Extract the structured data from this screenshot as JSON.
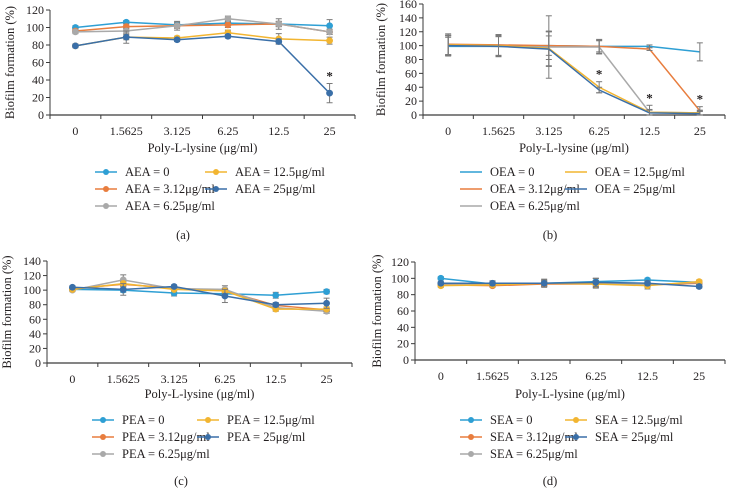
{
  "figure": {
    "panels": [
      "(a)",
      "(b)",
      "(c)",
      "(d)"
    ]
  },
  "chart_data": [
    {
      "type": "line",
      "panel": "(a)",
      "title": "",
      "xlabel": "Poly-L-lysine (μg/ml)",
      "ylabel": "Biofilm formation (%)",
      "categories": [
        "0",
        "1.5625",
        "3.125",
        "6.25",
        "12.5",
        "25"
      ],
      "ylim": [
        0,
        120
      ],
      "yticks": [
        0,
        20,
        40,
        60,
        80,
        100,
        120
      ],
      "grid": false,
      "markers": true,
      "legend_position": "bottom",
      "series": [
        {
          "name": "AEA = 0",
          "color": "#2e9fd4",
          "values": [
            100,
            106,
            103,
            105,
            104,
            102
          ],
          "errors": [
            2,
            2,
            3,
            3,
            3,
            7
          ]
        },
        {
          "name": "AEA = 3.12μg/ml",
          "color": "#e87d3e",
          "values": [
            96,
            101,
            102,
            103,
            104,
            95
          ],
          "errors": [
            2,
            3,
            3,
            3,
            3,
            3
          ]
        },
        {
          "name": "AEA = 6.25μg/ml",
          "color": "#a9a9a9",
          "values": [
            95,
            96,
            102,
            110,
            104,
            95
          ],
          "errors": [
            2,
            3,
            5,
            3,
            6,
            3
          ]
        },
        {
          "name": "AEA = 12.5μg/ml",
          "color": "#f2b531",
          "values": [
            79,
            89,
            88,
            94,
            87,
            85
          ],
          "errors": [
            2,
            3,
            2,
            3,
            6,
            4
          ]
        },
        {
          "name": "AEA = 25μg/ml",
          "color": "#3a6fa8",
          "values": [
            79,
            89,
            86,
            90,
            84,
            25
          ],
          "errors": [
            2,
            7,
            2,
            2,
            3,
            11
          ]
        }
      ],
      "annotations": [
        {
          "category": "25",
          "text": "*"
        }
      ]
    },
    {
      "type": "line",
      "panel": "(b)",
      "title": "",
      "xlabel": "Poly-L-lysine (μg/ml)",
      "ylabel": "Biofilm formation (%)",
      "categories": [
        "0",
        "1.5625",
        "3.125",
        "6.25",
        "12.5",
        "25"
      ],
      "ylim": [
        0,
        160
      ],
      "yticks": [
        0,
        20,
        40,
        60,
        80,
        100,
        120,
        140,
        160
      ],
      "grid": false,
      "markers": false,
      "legend_position": "bottom",
      "series": [
        {
          "name": "OEA = 0",
          "color": "#2e9fd4",
          "values": [
            99,
            99,
            100,
            99,
            99,
            91
          ],
          "errors": [
            13,
            15,
            14,
            10,
            2,
            13
          ]
        },
        {
          "name": "OEA = 3.12μg/ml",
          "color": "#e87d3e",
          "values": [
            102,
            101,
            100,
            99,
            95,
            6
          ],
          "errors": [
            15,
            15,
            20,
            8,
            2,
            6
          ]
        },
        {
          "name": "OEA = 6.25μg/ml",
          "color": "#a9a9a9",
          "values": [
            100,
            99,
            98,
            98,
            4,
            3
          ],
          "errors": [
            15,
            14,
            45,
            10,
            10,
            4
          ]
        },
        {
          "name": "OEA = 12.5μg/ml",
          "color": "#f2b531",
          "values": [
            101,
            100,
            96,
            40,
            4,
            3
          ],
          "errors": [
            14,
            15,
            25,
            8,
            4,
            3
          ]
        },
        {
          "name": "OEA = 25μg/ml",
          "color": "#3a6fa8",
          "values": [
            100,
            99,
            95,
            36,
            3,
            2
          ],
          "errors": [
            14,
            14,
            25,
            4,
            4,
            3
          ]
        }
      ],
      "annotations": [
        {
          "category": "6.25",
          "text": "*"
        },
        {
          "category": "12.5",
          "text": "*"
        },
        {
          "category": "25",
          "text": "*"
        }
      ]
    },
    {
      "type": "line",
      "panel": "(c)",
      "title": "",
      "xlabel": "Poly-L-lysine (μg/ml)",
      "ylabel": "Biofilm formation (%)",
      "categories": [
        "0",
        "1.5625",
        "3.125",
        "6.25",
        "12.5",
        "25"
      ],
      "ylim": [
        0,
        140
      ],
      "yticks": [
        0,
        20,
        40,
        60,
        80,
        100,
        120,
        140
      ],
      "grid": false,
      "markers": true,
      "legend_position": "bottom",
      "series": [
        {
          "name": "PEA = 0",
          "color": "#2e9fd4",
          "values": [
            101,
            100,
            96,
            95,
            93,
            98
          ],
          "errors": [
            2,
            3,
            4,
            3,
            4,
            3
          ]
        },
        {
          "name": "PEA = 3.12μg/ml",
          "color": "#e87d3e",
          "values": [
            102,
            108,
            103,
            99,
            79,
            73
          ],
          "errors": [
            2,
            3,
            2,
            3,
            3,
            3
          ]
        },
        {
          "name": "PEA = 6.25μg/ml",
          "color": "#a9a9a9",
          "values": [
            100,
            114,
            102,
            101,
            76,
            71
          ],
          "errors": [
            2,
            7,
            2,
            5,
            3,
            3
          ]
        },
        {
          "name": "PEA = 12.5μg/ml",
          "color": "#f2b531",
          "values": [
            101,
            109,
            101,
            99,
            74,
            74
          ],
          "errors": [
            2,
            3,
            2,
            3,
            3,
            3
          ]
        },
        {
          "name": "PEA = 25μg/ml",
          "color": "#3a6fa8",
          "values": [
            104,
            101,
            105,
            92,
            80,
            82
          ],
          "errors": [
            2,
            8,
            2,
            9,
            3,
            7
          ]
        }
      ],
      "annotations": []
    },
    {
      "type": "line",
      "panel": "(d)",
      "title": "",
      "xlabel": "Poly-L-lysine (μg/ml)",
      "ylabel": "Biofilm formation (%)",
      "categories": [
        "0",
        "1.5625",
        "3.125",
        "6.25",
        "12.5",
        "25"
      ],
      "ylim": [
        0,
        120
      ],
      "yticks": [
        0,
        20,
        40,
        60,
        80,
        100,
        120
      ],
      "grid": false,
      "markers": true,
      "legend_position": "bottom",
      "series": [
        {
          "name": "SEA = 0",
          "color": "#2e9fd4",
          "values": [
            100,
            93,
            94,
            96,
            98,
            95
          ],
          "errors": [
            2,
            3,
            4,
            4,
            2,
            2
          ]
        },
        {
          "name": "SEA = 3.12μg/ml",
          "color": "#e87d3e",
          "values": [
            92,
            91,
            93,
            93,
            92,
            94
          ],
          "errors": [
            2,
            2,
            3,
            4,
            3,
            2
          ]
        },
        {
          "name": "SEA = 6.25μg/ml",
          "color": "#a9a9a9",
          "values": [
            93,
            93,
            94,
            94,
            92,
            95
          ],
          "errors": [
            2,
            3,
            3,
            6,
            3,
            2
          ]
        },
        {
          "name": "SEA = 12.5μg/ml",
          "color": "#f2b531",
          "values": [
            91,
            92,
            94,
            93,
            91,
            96
          ],
          "errors": [
            2,
            2,
            3,
            4,
            4,
            2
          ]
        },
        {
          "name": "SEA = 25μg/ml",
          "color": "#3a6fa8",
          "values": [
            94,
            94,
            94,
            95,
            94,
            90
          ],
          "errors": [
            2,
            3,
            5,
            5,
            3,
            2
          ]
        }
      ],
      "annotations": []
    }
  ]
}
